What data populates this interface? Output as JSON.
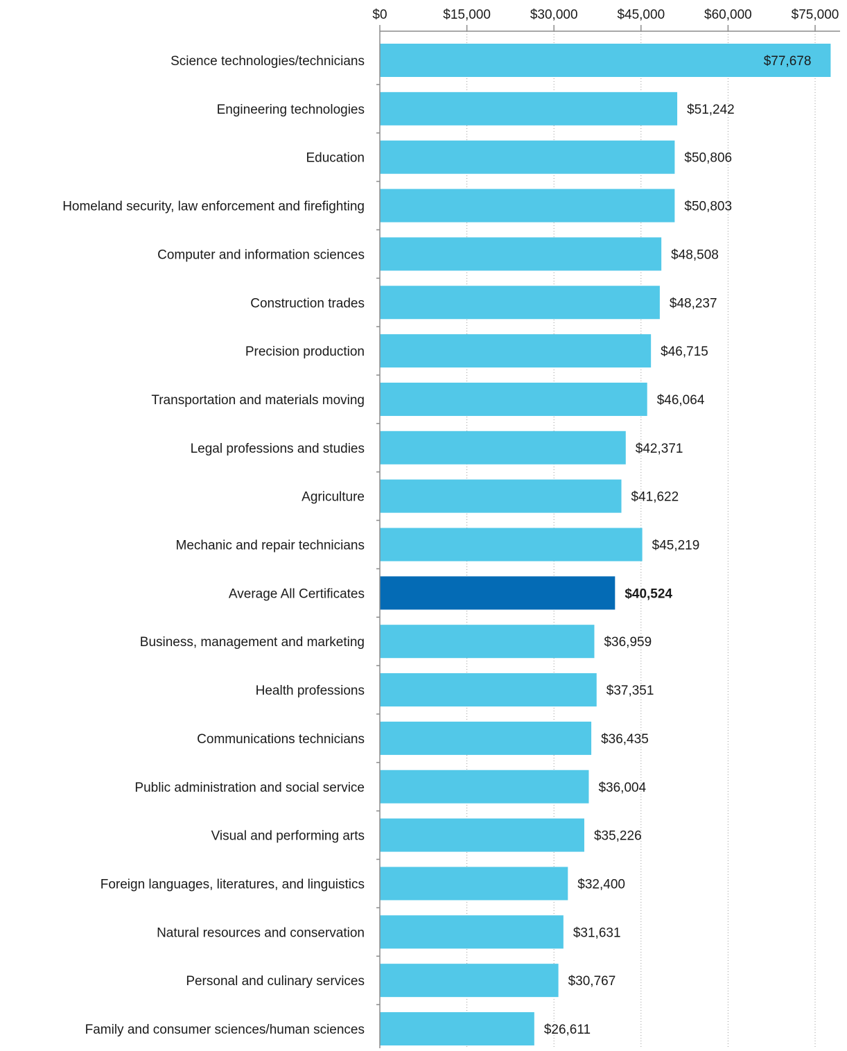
{
  "chart_data": {
    "type": "bar",
    "orientation": "horizontal",
    "categories": [
      "Science technologies/technicians",
      "Engineering technologies",
      "Education",
      "Homeland security, law enforcement and firefighting",
      "Computer and information sciences",
      "Construction trades",
      "Precision production",
      "Transportation and materials moving",
      "Legal professions and studies",
      "Agriculture",
      "Mechanic and repair technicians",
      "Average All Certificates",
      "Business, management and marketing",
      "Health professions",
      "Communications technicians",
      "Public administration and social service",
      "Visual and performing arts",
      "Foreign languages, literatures, and linguistics",
      "Natural resources and conservation",
      "Personal and culinary services",
      "Family and consumer sciences/human sciences"
    ],
    "values": [
      77678,
      51242,
      50806,
      50803,
      48508,
      48237,
      46715,
      46064,
      42371,
      41622,
      45219,
      40524,
      36959,
      37351,
      36435,
      36004,
      35226,
      32400,
      31631,
      30767,
      26611
    ],
    "value_labels": [
      "$77,678",
      "$51,242",
      "$50,806",
      "$50,803",
      "$48,508",
      "$48,237",
      "$46,715",
      "$46,064",
      "$42,371",
      "$41,622",
      "$45,219",
      "$40,524",
      "$36,959",
      "$37,351",
      "$36,435",
      "$36,004",
      "$35,226",
      "$32,400",
      "$31,631",
      "$30,767",
      "$26,611"
    ],
    "highlight_index": 11,
    "x_ticks": [
      0,
      15000,
      30000,
      45000,
      60000,
      75000
    ],
    "x_tick_labels": [
      "$0",
      "$15,000",
      "$30,000",
      "$45,000",
      "$60,000",
      "$75,000"
    ],
    "xlim": [
      0,
      78000
    ],
    "x_axis_position": "top",
    "grid": true,
    "title": "",
    "xlabel": "",
    "ylabel": "",
    "colors": {
      "bar": "#52c8e8",
      "highlight": "#046bb5"
    }
  }
}
